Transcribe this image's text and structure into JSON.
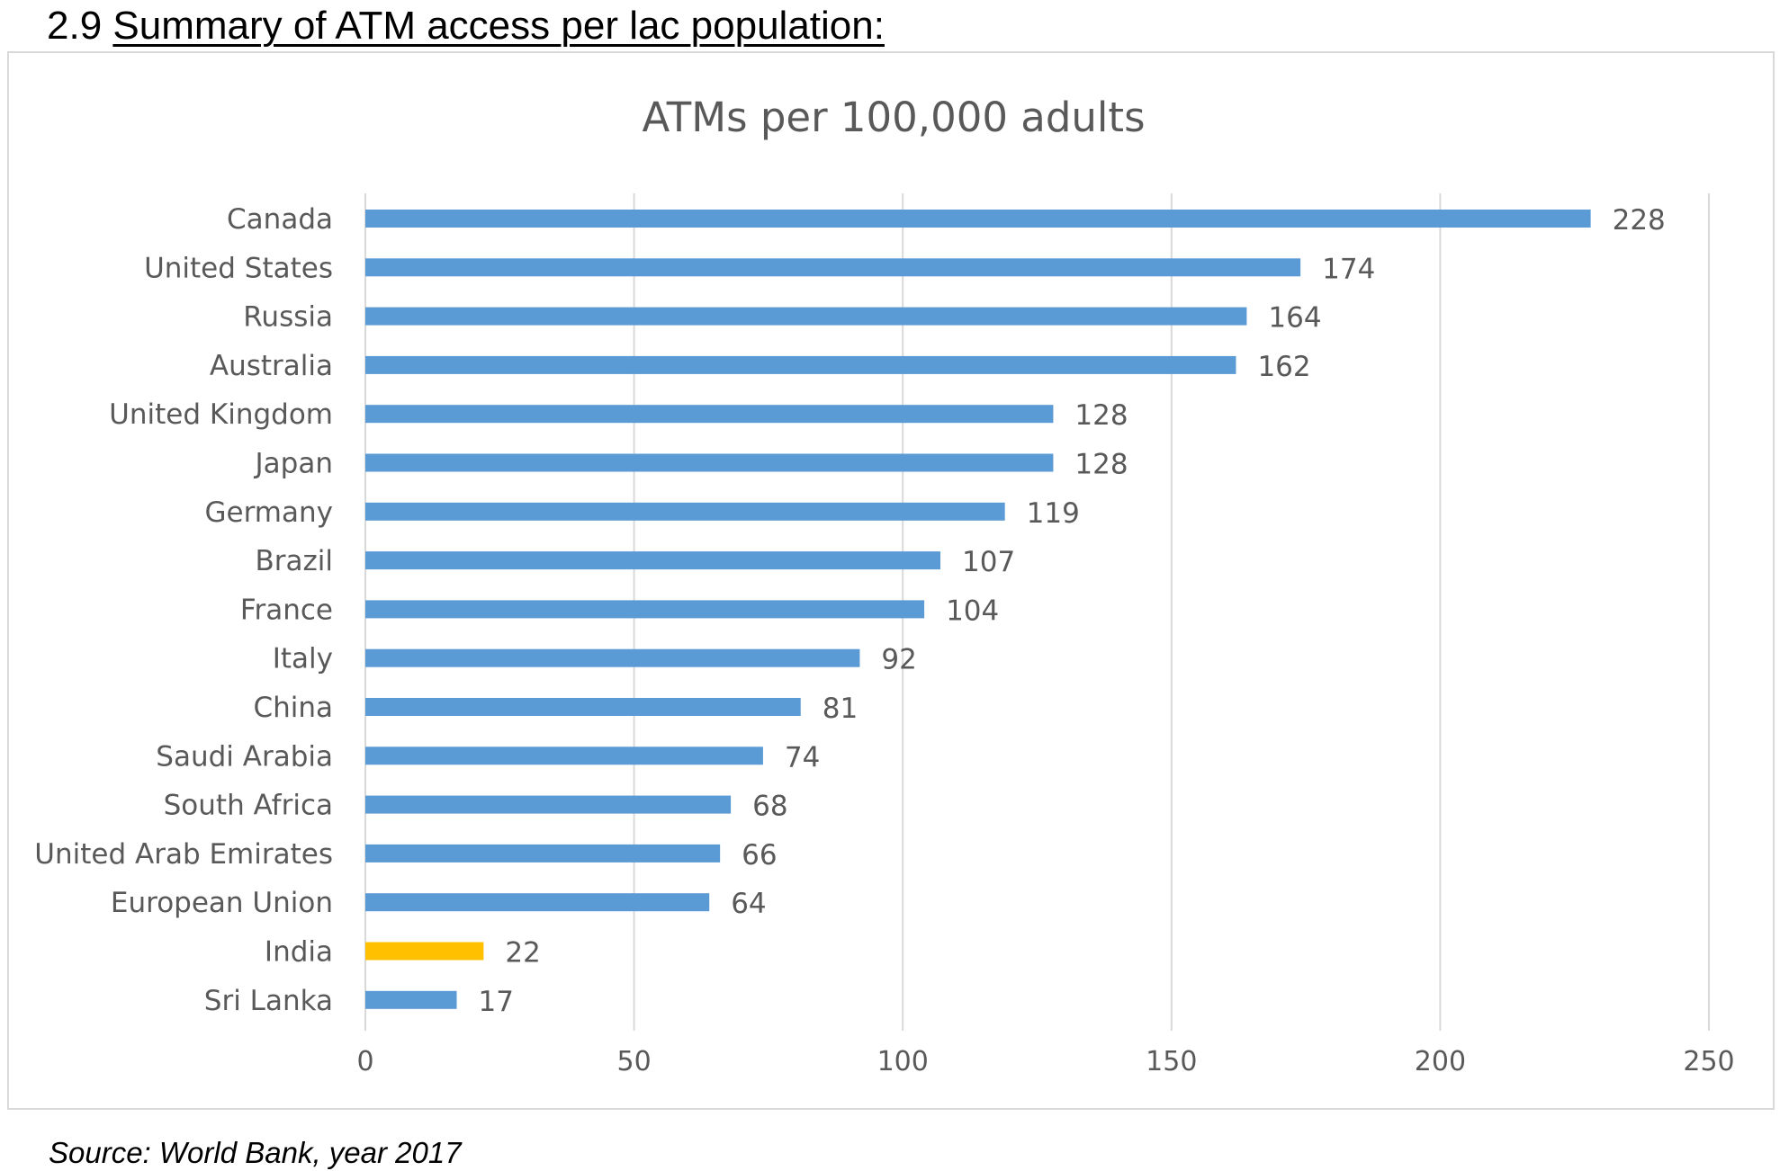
{
  "heading": {
    "number": "2.9",
    "title": "Summary of ATM access per lac population:"
  },
  "source_note": "Source: World Bank, year 2017",
  "chart_data": {
    "type": "bar",
    "orientation": "horizontal",
    "title": "ATMs per 100,000 adults",
    "xlabel": "",
    "ylabel": "",
    "categories": [
      "Canada",
      "United States",
      "Russia",
      "Australia",
      "United Kingdom",
      "Japan",
      "Germany",
      "Brazil",
      "France",
      "Italy",
      "China",
      "Saudi Arabia",
      "South Africa",
      "United Arab Emirates",
      "European Union",
      "India",
      "Sri Lanka"
    ],
    "values": [
      228,
      174,
      164,
      162,
      128,
      128,
      119,
      107,
      104,
      92,
      81,
      74,
      68,
      66,
      64,
      22,
      17
    ],
    "xlim": [
      0,
      250
    ],
    "xticks": [
      0,
      50,
      100,
      150,
      200,
      250
    ],
    "grid": "vertical",
    "legend": "none",
    "data_labels": true,
    "colors": {
      "default_bar": "#5b9bd5",
      "highlight_bar": "#ffc000",
      "highlight_category": "India",
      "grid": "#d9d9d9",
      "label_text": "#595959",
      "title_text": "#595959"
    }
  }
}
